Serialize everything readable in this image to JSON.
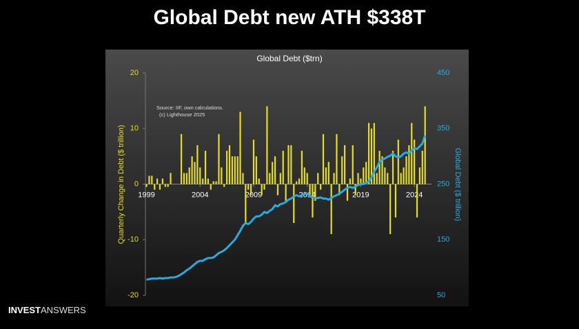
{
  "slide_title": "Global Debt new ATH $338T",
  "brand_bold": "INVEST",
  "brand_light": "ANSWERS",
  "chart_data": {
    "type": "bar_line",
    "title": "Global Debt ($trn)",
    "y_label": "Quarterly Change in Debt ($ trillion)",
    "y2_label": "Global Debt ($ trillion)",
    "annotations": [
      "Source: IIF, own calculations.",
      "(c) Lighthouse 2025"
    ],
    "x": [
      1999,
      1999.25,
      1999.5,
      1999.75,
      2000,
      2000.25,
      2000.5,
      2000.75,
      2001,
      2001.25,
      2001.5,
      2001.75,
      2002,
      2002.25,
      2002.5,
      2002.75,
      2003,
      2003.25,
      2003.5,
      2003.75,
      2004,
      2004.25,
      2004.5,
      2004.75,
      2005,
      2005.25,
      2005.5,
      2005.75,
      2006,
      2006.25,
      2006.5,
      2006.75,
      2007,
      2007.25,
      2007.5,
      2007.75,
      2008,
      2008.25,
      2008.5,
      2008.75,
      2009,
      2009.25,
      2009.5,
      2009.75,
      2010,
      2010.25,
      2010.5,
      2010.75,
      2011,
      2011.25,
      2011.5,
      2011.75,
      2012,
      2012.25,
      2012.5,
      2012.75,
      2013,
      2013.25,
      2013.5,
      2013.75,
      2014,
      2014.25,
      2014.5,
      2014.75,
      2015,
      2015.25,
      2015.5,
      2015.75,
      2016,
      2016.25,
      2016.5,
      2016.75,
      2017,
      2017.25,
      2017.5,
      2017.75,
      2018,
      2018.25,
      2018.5,
      2018.75,
      2019,
      2019.25,
      2019.5,
      2019.75,
      2020,
      2020.25,
      2020.5,
      2020.75,
      2021,
      2021.25,
      2021.5,
      2021.75,
      2022,
      2022.25,
      2022.5,
      2022.75,
      2023,
      2023.25,
      2023.5,
      2023.75,
      2024,
      2024.25,
      2024.5,
      2024.75,
      2025
    ],
    "series": [
      {
        "name": "Quarterly Change in Debt",
        "type": "bar",
        "color": "#e6df1f",
        "values": [
          -0.5,
          1.5,
          1.5,
          -1,
          1,
          -1,
          1,
          -0.5,
          -0.5,
          2,
          0,
          0,
          0,
          9,
          2,
          2,
          3,
          5,
          4,
          7,
          3,
          1,
          6,
          1,
          -1,
          0.5,
          0.5,
          9,
          3,
          -0.5,
          6,
          7,
          5,
          5,
          5,
          13,
          2,
          -7,
          -1,
          -2,
          8,
          5,
          1,
          -2,
          -1,
          14,
          2,
          4,
          5,
          -2,
          2,
          6,
          -3,
          7,
          7,
          -7,
          0.5,
          1,
          6,
          3,
          2,
          -2,
          -6,
          -3,
          2,
          -1,
          9,
          3,
          4,
          -9,
          2,
          9,
          -2,
          5,
          7,
          -3,
          1,
          7,
          -2,
          2,
          1,
          3,
          4,
          11,
          10,
          11,
          2,
          6,
          5,
          3,
          2,
          -9,
          6,
          -6,
          8,
          2,
          3,
          5,
          7,
          11,
          8,
          -6,
          3,
          6,
          14
        ]
      },
      {
        "name": "Global Debt",
        "type": "line",
        "axis": "y2",
        "color": "#29abe2",
        "values": [
          78,
          79,
          80,
          80,
          80,
          81,
          80,
          81,
          81,
          82,
          82,
          83,
          85,
          88,
          91,
          95,
          98,
          102,
          106,
          110,
          112,
          112,
          115,
          117,
          117,
          118,
          122,
          126,
          128,
          131,
          135,
          140,
          145,
          150,
          158,
          166,
          175,
          180,
          178,
          182,
          188,
          192,
          192,
          195,
          200,
          198,
          202,
          205,
          212,
          210,
          214,
          215,
          218,
          222,
          224,
          228,
          230,
          228,
          230,
          232,
          233,
          228,
          226,
          225,
          225,
          226,
          224,
          224,
          222,
          225,
          228,
          230,
          233,
          236,
          240,
          243,
          245,
          243,
          246,
          248,
          250,
          250,
          252,
          255,
          262,
          272,
          280,
          290,
          294,
          296,
          299,
          301,
          305,
          300,
          298,
          300,
          305,
          307,
          305,
          310,
          315,
          313,
          318,
          323,
          338
        ]
      }
    ],
    "xlim": [
      1998.9,
      2025.6
    ],
    "xticks": [
      1999,
      2004,
      2009,
      2014,
      2019,
      2024
    ],
    "ylim": [
      -20,
      20
    ],
    "yticks": [
      20,
      10,
      0,
      -10,
      -20
    ],
    "y2lim": [
      50,
      450
    ],
    "y2ticks": [
      450,
      350,
      250,
      150,
      50
    ],
    "y_color": "#e6df1f",
    "y2_color": "#29abe2"
  }
}
